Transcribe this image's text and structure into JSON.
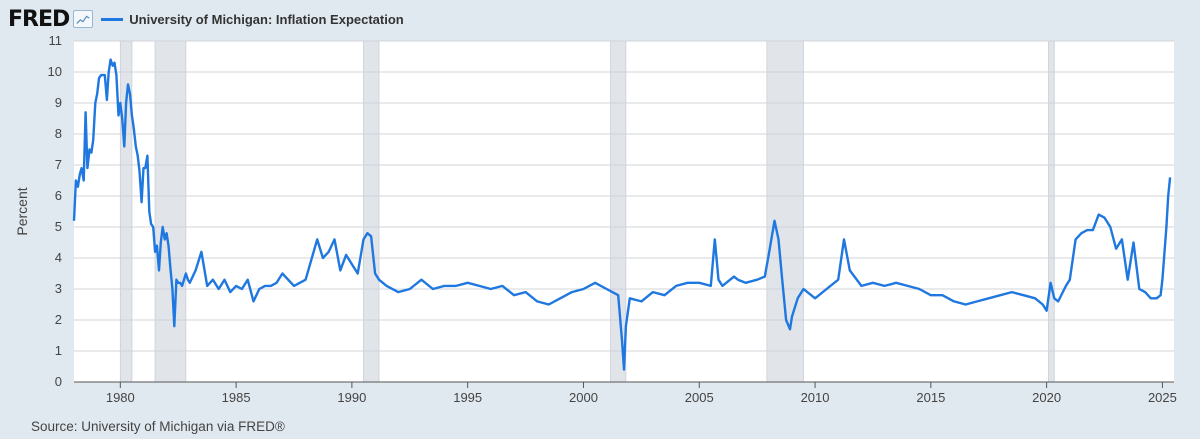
{
  "header": {
    "logo_text": "FRED",
    "logo_icon": "line-chart-icon",
    "legend_label": "University of Michigan: Inflation Expectation"
  },
  "source": "Source: University of Michigan via FRED®",
  "colors": {
    "line": "#1f77e0",
    "recession": "#e1e5ea",
    "recession_edge": "#c8cfd7",
    "plot_bg": "#ffffff",
    "page_bg": "#e1e9f0",
    "grid": "#d0d4d9"
  },
  "chart_data": {
    "type": "line",
    "ylabel": "Percent",
    "xlabel": "",
    "ylim": [
      0,
      11
    ],
    "xlim": [
      1978.0,
      2025.5
    ],
    "y_ticks": [
      "0",
      "1",
      "2",
      "3",
      "4",
      "5",
      "6",
      "7",
      "8",
      "9",
      "10",
      "11"
    ],
    "x_ticks": [
      "1980",
      "1985",
      "1990",
      "1995",
      "2000",
      "2005",
      "2010",
      "2015",
      "2020",
      "2025"
    ],
    "grid": "horizontal",
    "legend_position": "top-left",
    "recessions": [
      [
        1980.0,
        1980.5
      ],
      [
        1981.5,
        1982.83
      ],
      [
        1990.5,
        1991.17
      ],
      [
        2001.17,
        2001.83
      ],
      [
        2007.92,
        2009.5
      ],
      [
        2020.08,
        2020.33
      ]
    ],
    "series": [
      {
        "name": "University of Michigan: Inflation Expectation",
        "x": [
          1978.0,
          1978.08,
          1978.17,
          1978.25,
          1978.33,
          1978.42,
          1978.5,
          1978.58,
          1978.67,
          1978.75,
          1978.83,
          1978.92,
          1979.0,
          1979.08,
          1979.17,
          1979.25,
          1979.33,
          1979.42,
          1979.5,
          1979.58,
          1979.67,
          1979.75,
          1979.83,
          1979.92,
          1980.0,
          1980.08,
          1980.17,
          1980.25,
          1980.33,
          1980.42,
          1980.5,
          1980.58,
          1980.67,
          1980.75,
          1980.83,
          1980.92,
          1981.0,
          1981.08,
          1981.17,
          1981.25,
          1981.33,
          1981.42,
          1981.5,
          1981.58,
          1981.67,
          1981.75,
          1981.83,
          1981.92,
          1982.0,
          1982.08,
          1982.17,
          1982.25,
          1982.33,
          1982.42,
          1982.5,
          1982.58,
          1982.67,
          1982.75,
          1982.83,
          1982.92,
          1983.0,
          1983.25,
          1983.5,
          1983.75,
          1984.0,
          1984.25,
          1984.5,
          1984.75,
          1985.0,
          1985.25,
          1985.5,
          1985.75,
          1986.0,
          1986.25,
          1986.5,
          1986.75,
          1987.0,
          1987.5,
          1988.0,
          1988.5,
          1988.75,
          1989.0,
          1989.25,
          1989.5,
          1989.75,
          1990.0,
          1990.25,
          1990.5,
          1990.67,
          1990.83,
          1991.0,
          1991.17,
          1991.5,
          1992.0,
          1992.5,
          1993.0,
          1993.5,
          1994.0,
          1994.5,
          1995.0,
          1995.5,
          1996.0,
          1996.5,
          1997.0,
          1997.5,
          1998.0,
          1998.5,
          1999.0,
          1999.5,
          2000.0,
          2000.5,
          2001.0,
          2001.5,
          2001.67,
          2001.75,
          2001.83,
          2002.0,
          2002.5,
          2003.0,
          2003.5,
          2004.0,
          2004.5,
          2005.0,
          2005.5,
          2005.67,
          2005.83,
          2006.0,
          2006.5,
          2006.67,
          2007.0,
          2007.5,
          2007.83,
          2008.0,
          2008.25,
          2008.42,
          2008.58,
          2008.75,
          2008.92,
          2009.0,
          2009.25,
          2009.5,
          2010.0,
          2010.5,
          2011.0,
          2011.25,
          2011.5,
          2012.0,
          2012.5,
          2013.0,
          2013.5,
          2014.0,
          2014.5,
          2015.0,
          2015.5,
          2016.0,
          2016.5,
          2017.0,
          2017.5,
          2018.0,
          2018.5,
          2019.0,
          2019.5,
          2019.83,
          2020.0,
          2020.17,
          2020.33,
          2020.5,
          2020.83,
          2021.0,
          2021.25,
          2021.5,
          2021.75,
          2022.0,
          2022.25,
          2022.5,
          2022.75,
          2023.0,
          2023.25,
          2023.5,
          2023.75,
          2024.0,
          2024.25,
          2024.5,
          2024.75,
          2024.92,
          2025.0,
          2025.17,
          2025.25,
          2025.33
        ],
        "values": [
          5.2,
          6.5,
          6.3,
          6.7,
          6.9,
          6.5,
          8.7,
          6.9,
          7.5,
          7.4,
          7.8,
          9.0,
          9.3,
          9.8,
          9.9,
          9.9,
          9.9,
          9.1,
          10.0,
          10.4,
          10.2,
          10.3,
          9.9,
          8.6,
          9.0,
          8.5,
          7.6,
          9.0,
          9.6,
          9.3,
          8.6,
          8.2,
          7.6,
          7.3,
          6.8,
          5.8,
          6.9,
          6.9,
          7.3,
          5.5,
          5.1,
          5.0,
          4.2,
          4.4,
          3.6,
          4.5,
          5.0,
          4.6,
          4.8,
          4.4,
          3.6,
          3.0,
          1.8,
          3.3,
          3.2,
          3.2,
          3.1,
          3.3,
          3.5,
          3.3,
          3.2,
          3.6,
          4.2,
          3.1,
          3.3,
          3.0,
          3.3,
          2.9,
          3.1,
          3.0,
          3.3,
          2.6,
          3.0,
          3.1,
          3.1,
          3.2,
          3.5,
          3.1,
          3.3,
          4.6,
          4.0,
          4.2,
          4.6,
          3.6,
          4.1,
          3.8,
          3.5,
          4.6,
          4.8,
          4.7,
          3.5,
          3.3,
          3.1,
          2.9,
          3.0,
          3.3,
          3.0,
          3.1,
          3.1,
          3.2,
          3.1,
          3.0,
          3.1,
          2.8,
          2.9,
          2.6,
          2.5,
          2.7,
          2.9,
          3.0,
          3.2,
          3.0,
          2.8,
          1.3,
          0.4,
          1.8,
          2.7,
          2.6,
          2.9,
          2.8,
          3.1,
          3.2,
          3.2,
          3.1,
          4.6,
          3.3,
          3.1,
          3.4,
          3.3,
          3.2,
          3.3,
          3.4,
          4.1,
          5.2,
          4.6,
          3.3,
          2.0,
          1.7,
          2.1,
          2.7,
          3.0,
          2.7,
          3.0,
          3.3,
          4.6,
          3.6,
          3.1,
          3.2,
          3.1,
          3.2,
          3.1,
          3.0,
          2.8,
          2.8,
          2.6,
          2.5,
          2.6,
          2.7,
          2.8,
          2.9,
          2.8,
          2.7,
          2.5,
          2.3,
          3.2,
          2.7,
          2.6,
          3.1,
          3.3,
          4.6,
          4.8,
          4.9,
          4.9,
          5.4,
          5.3,
          5.0,
          4.3,
          4.6,
          3.3,
          4.5,
          3.0,
          2.9,
          2.7,
          2.7,
          2.8,
          3.3,
          5.0,
          6.0,
          6.6
        ]
      }
    ]
  }
}
